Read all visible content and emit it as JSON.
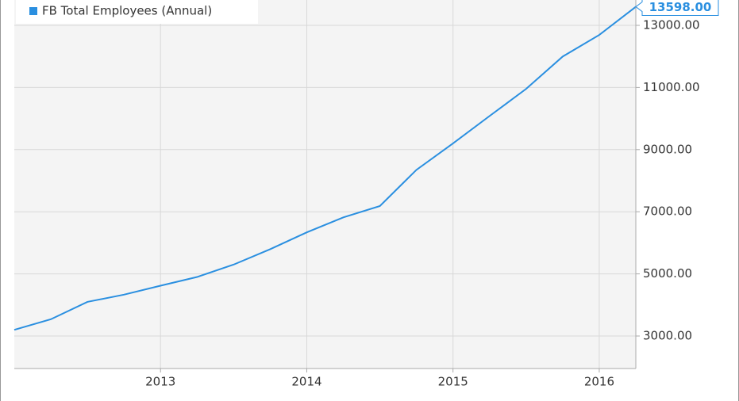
{
  "chart_data": {
    "type": "line",
    "x": [
      2012,
      2012.25,
      2012.5,
      2012.75,
      2013,
      2013.25,
      2013.5,
      2013.75,
      2014,
      2014.25,
      2014.5,
      2014.75,
      2015,
      2015.25,
      2015.5,
      2015.75,
      2016,
      2016.25
    ],
    "series": [
      {
        "name": "FB Total Employees (Annual)",
        "color": "#2a8fe0",
        "values": [
          3200,
          3539,
          4098,
          4331,
          4619,
          4900,
          5299,
          5794,
          6337,
          6818,
          7185,
          8348,
          9199,
          10082,
          10955,
          11996,
          12691,
          13598
        ],
        "value_labels": [
          null,
          null,
          null,
          null,
          null,
          null,
          null,
          null,
          null,
          null,
          null,
          null,
          null,
          null,
          null,
          null,
          null,
          "13598.00"
        ]
      }
    ],
    "xlim": [
      2012,
      2016.25
    ],
    "xticks": [
      2013,
      2014,
      2015,
      2016
    ],
    "ylim": [
      1954,
      13816
    ],
    "yticks": [
      {
        "value": 3000,
        "label": "3000.00"
      },
      {
        "value": 5000,
        "label": "5000.00"
      },
      {
        "value": 7000,
        "label": "7000.00"
      },
      {
        "value": 9000,
        "label": "9000.00"
      },
      {
        "value": 11000,
        "label": "11000.00"
      },
      {
        "value": 13000,
        "label": "13000.00"
      }
    ],
    "grid": true,
    "legend": "top-left"
  }
}
